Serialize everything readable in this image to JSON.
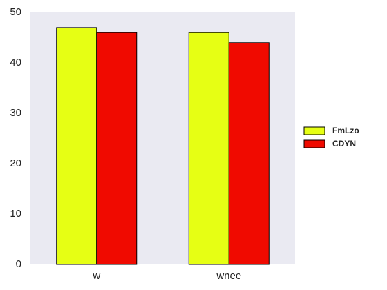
{
  "chart_data": {
    "type": "bar",
    "title": "",
    "xlabel": "",
    "ylabel": "",
    "categories": [
      "w",
      "wnee"
    ],
    "series": [
      {
        "name": "FmLzo",
        "values": [
          47,
          46
        ],
        "color": "#e6ff14"
      },
      {
        "name": "CDYN",
        "values": [
          46,
          44
        ],
        "color": "#f00a00"
      }
    ],
    "ylim": [
      0,
      50
    ],
    "yticks": [
      0,
      10,
      20,
      30,
      40,
      50
    ],
    "grid": false,
    "legend_position": "right",
    "plot_background": "#eaeaf2"
  }
}
